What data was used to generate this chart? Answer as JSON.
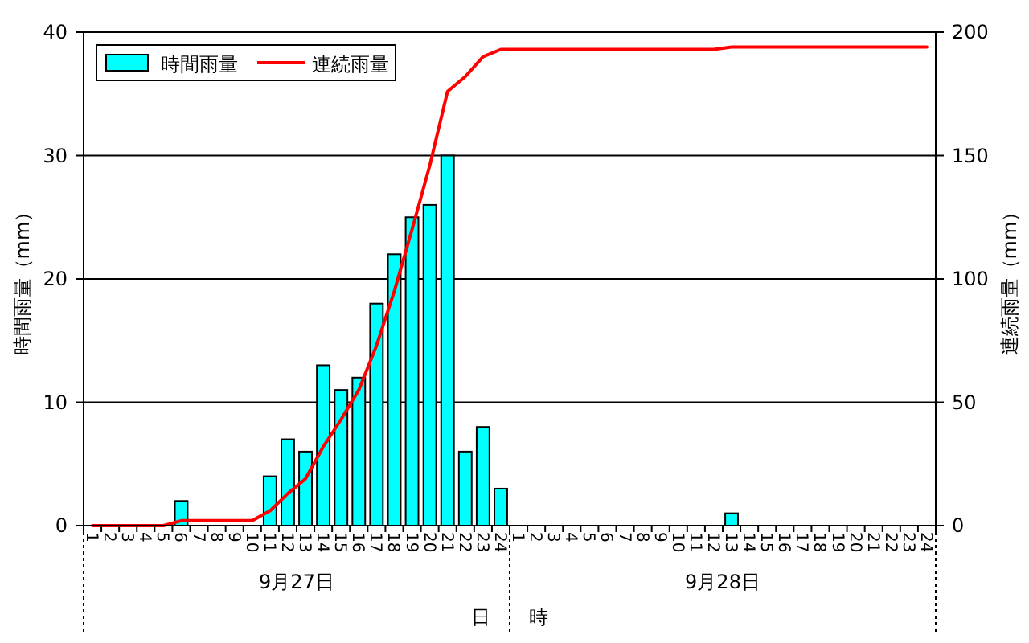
{
  "chart_data": {
    "type": "bar",
    "xlabel": "日　　時",
    "ylabel": "時間雨量（mm）",
    "y2label": "連続雨量（mm）",
    "categories": [
      "1",
      "2",
      "3",
      "4",
      "5",
      "6",
      "7",
      "8",
      "9",
      "10",
      "11",
      "12",
      "13",
      "14",
      "15",
      "16",
      "17",
      "18",
      "19",
      "20",
      "21",
      "22",
      "23",
      "24",
      "1",
      "2",
      "3",
      "4",
      "5",
      "6",
      "7",
      "8",
      "9",
      "10",
      "11",
      "12",
      "13",
      "14",
      "15",
      "16",
      "17",
      "18",
      "19",
      "20",
      "21",
      "22",
      "23",
      "24"
    ],
    "series": [
      {
        "name": "時間雨量",
        "color": "#00ffff",
        "values": [
          0,
          0,
          0,
          0,
          0,
          2,
          0,
          0,
          0,
          0,
          4,
          7,
          6,
          13,
          11,
          12,
          18,
          22,
          25,
          26,
          30,
          6,
          8,
          3,
          0,
          0,
          0,
          0,
          0,
          0,
          0,
          0,
          0,
          0,
          0,
          0,
          1,
          0,
          0,
          0,
          0,
          0,
          0,
          0,
          0,
          0,
          0,
          0
        ]
      },
      {
        "name": "連続雨量",
        "type": "line",
        "axis": "y2",
        "color": "#ff0000",
        "values": [
          0,
          0,
          0,
          0,
          0,
          2,
          2,
          2,
          2,
          2,
          6,
          13,
          19,
          32,
          43,
          55,
          73,
          95,
          120,
          146,
          176,
          182,
          190,
          193,
          193,
          193,
          193,
          193,
          193,
          193,
          193,
          193,
          193,
          193,
          193,
          193,
          194,
          194,
          194,
          194,
          194,
          194,
          194,
          194,
          194,
          194,
          194,
          194
        ]
      }
    ],
    "ylim": [
      0,
      40
    ],
    "yticks": [
      0,
      10,
      20,
      30,
      40
    ],
    "y2lim": [
      0,
      200
    ],
    "y2ticks": [
      0,
      50,
      100,
      150,
      200
    ],
    "grid": "y",
    "legend": "top left",
    "marker": "none",
    "line_style": "solid",
    "annotations": [
      "9月27日",
      "9月28日"
    ]
  }
}
